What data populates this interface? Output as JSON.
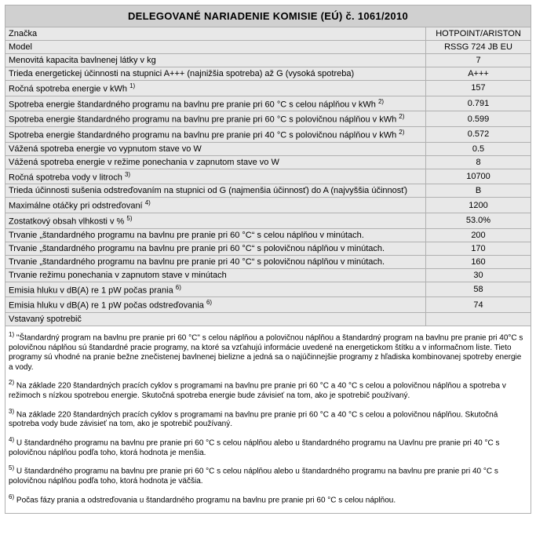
{
  "header": {
    "title": "DELEGOVANÉ NARIADENIE KOMISIE (EÚ) č. 1061/2010"
  },
  "brand_row": {
    "label": "Značka",
    "value": "HOTPOINT/ARISTON"
  },
  "model_row": {
    "label": "Model",
    "value": "RSSG 724 JB EU"
  },
  "rows": [
    {
      "label": "Menovitá kapacita bavlnenej látky v kg",
      "sup": "",
      "value": "7"
    },
    {
      "label": "Trieda energetickej účinnosti na stupnici A+++ (najnižšia spotreba) až G (vysoká spotreba)",
      "sup": "",
      "value": "A+++"
    },
    {
      "label": "Ročná spotreba energie v kWh",
      "sup": "1)",
      "value": "157"
    },
    {
      "label": "Spotreba energie štandardného programu na bavlnu pre pranie pri 60 °C s celou náplňou v kWh",
      "sup": "2)",
      "value": "0.791"
    },
    {
      "label": "Spotreba energie štandardného programu na bavlnu pre pranie pri 60 °C s polovičnou náplňou v kWh",
      "sup": "2)",
      "value": "0.599"
    },
    {
      "label": "Spotreba energie štandardného programu na bavlnu pre pranie pri 40 °C s polovičnou náplňou v kWh",
      "sup": "2)",
      "value": "0.572"
    },
    {
      "label": "Vážená spotreba energie vo vypnutom stave vo W",
      "sup": "",
      "value": "0.5"
    },
    {
      "label": "Vážená spotreba energie v režime ponechania v zapnutom stave vo W",
      "sup": "",
      "value": "8"
    },
    {
      "label": "Ročná spotreba vody v litroch",
      "sup": "3)",
      "value": "10700"
    },
    {
      "label": "Trieda účinnosti sušenia odstreďovaním na stupnici od G (najmenšia účinnosť) do A (najvyššia účinnosť)",
      "sup": "",
      "value": "B"
    },
    {
      "label": "Maximálne otáčky pri odstreďovaní",
      "sup": "4)",
      "value": "1200"
    },
    {
      "label": "Zostatkový obsah vlhkosti v %",
      "sup": "5)",
      "value": "53.0%"
    },
    {
      "label": "Trvanie „štandardného programu na bavlnu pre pranie pri 60 °C“ s celou náplňou v minútach.",
      "sup": "",
      "value": "200"
    },
    {
      "label": "Trvanie „štandardného programu na bavlnu pre pranie pri 60 °C“ s polovičnou náplňou v minútach.",
      "sup": "",
      "value": "170"
    },
    {
      "label": "Trvanie „štandardného programu na bavlnu pre pranie pri 40 °C“ s polovičnou náplňou v minútach.",
      "sup": "",
      "value": "160"
    },
    {
      "label": "Trvanie režimu ponechania v zapnutom stave v minútach",
      "sup": "",
      "value": "30"
    },
    {
      "label": "Emisia hluku v dB(A) re 1 pW počas prania",
      "sup": "6)",
      "value": "58"
    },
    {
      "label": "Emisia hluku v dB(A) re 1 pW počas odstreďovania",
      "sup": "6)",
      "value": "74"
    },
    {
      "label": "Vstavaný spotrebič",
      "sup": "",
      "value": ""
    }
  ],
  "footnotes": [
    {
      "num": "1)",
      "text": "\"Štandardný program na bavlnu pre pranie pri 60 °C\" s celou náplňou a polovičnou náplňou a štandardný program na bavlnu pre pranie pri 40°C s polovičnou náplňou sú štandardné pracie programy, na ktoré sa vzťahujú informácie uvedené na energetickom štítku a v informačnom liste. Tieto programy sú vhodné na pranie bežne znečistenej bavlnenej bielizne a jedná sa o najúčinnejšie programy z hľadiska kombinovanej spotreby energie a vody."
    },
    {
      "num": "2)",
      "text": "Na základe 220 štandardných pracích cyklov s programami na bavlnu pre pranie pri 60 °C a 40 °C s celou a polovičnou náplňou a spotreba v režimoch s nízkou spotrebou energie. Skutočná spotreba energie bude závisieť na tom, ako je spotrebič používaný."
    },
    {
      "num": "3)",
      "text": "Na základe 220 štandardných pracích cyklov s programami na bavlnu pre pranie pri 60 °C a 40 °C s celou a polovičnou náplňou. Skutočná spotreba vody bude závisieť na tom, ako je spotrebič používaný."
    },
    {
      "num": "4)",
      "text": "U štandardného programu na bavlnu pre pranie pri 60 °C s celou náplňou alebo u štandardného programu na Uavlnu pre pranie pri 40 °C s polovičnou náplňou podľa toho, ktorá hodnota je menšia."
    },
    {
      "num": "5)",
      "text": "U štandardného programu na bavlnu pre pranie pri 60 °C s celou náplňou alebo u štandardného programu na bavlnu pre pranie pri 40 °C s polovičnou náplňou podľa toho, ktorá hodnota je väčšia."
    },
    {
      "num": "6)",
      "text": "Počas fázy prania a odstreďovania u štandardného programu na bavlnu pre pranie pri 60 °C s celou náplňou."
    }
  ]
}
